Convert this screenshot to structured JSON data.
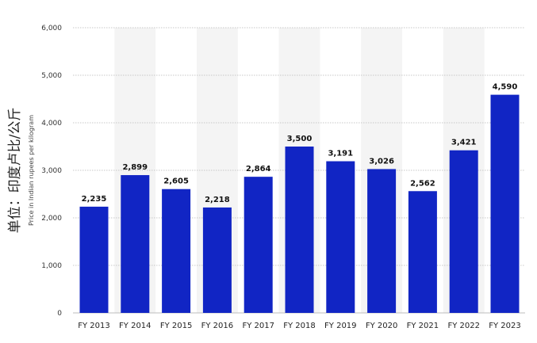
{
  "chart_data": {
    "type": "bar",
    "categories": [
      "FY 2013",
      "FY 2014",
      "FY 2015",
      "FY 2016",
      "FY 2017",
      "FY 2018",
      "FY 2019",
      "FY 2020",
      "FY 2021",
      "FY 2022",
      "FY 2023"
    ],
    "values": [
      2235,
      2899,
      2605,
      2218,
      2864,
      3500,
      3191,
      3026,
      2562,
      3421,
      4590
    ],
    "value_labels": [
      "2,235",
      "2,899",
      "2,605",
      "2,218",
      "2,864",
      "3,500",
      "3,191",
      "3,026",
      "2,562",
      "3,421",
      "4,590"
    ],
    "ylabel_main": "单位：印度卢比/公斤",
    "ylabel_sub": "Price in Indian rupees per kilogram",
    "ylim": [
      0,
      6000
    ],
    "yticks": [
      0,
      1000,
      2000,
      3000,
      4000,
      5000,
      6000
    ],
    "ytick_labels": [
      "0",
      "1,000",
      "2,000",
      "3,000",
      "4,000",
      "5,000",
      "6,000"
    ],
    "grid": true,
    "bar_color": "#1125c4",
    "band_color": "#f4f4f4",
    "grid_color": "#c8c8c8"
  }
}
